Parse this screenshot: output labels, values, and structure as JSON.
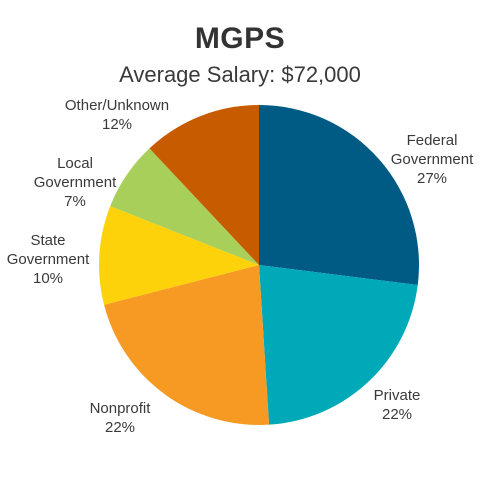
{
  "chart_data": {
    "type": "pie",
    "title": "MGPS",
    "subtitle": "Average Salary: $72,000",
    "slices": [
      {
        "name": "Federal Government",
        "label_lines": [
          "Federal",
          "Government",
          "27%"
        ],
        "value": 27,
        "color": "#005b84"
      },
      {
        "name": "Private",
        "label_lines": [
          "Private",
          "22%"
        ],
        "value": 22,
        "color": "#00a9b8"
      },
      {
        "name": "Nonprofit",
        "label_lines": [
          "Nonprofit",
          "22%"
        ],
        "value": 22,
        "color": "#f79a24"
      },
      {
        "name": "State Government",
        "label_lines": [
          "State",
          "Government",
          "10%"
        ],
        "value": 10,
        "color": "#fdd20a"
      },
      {
        "name": "Local Government",
        "label_lines": [
          "Local",
          "Government",
          "7%"
        ],
        "value": 7,
        "color": "#a8cf5a"
      },
      {
        "name": "Other/Unknown",
        "label_lines": [
          "Other/Unknown",
          "12%"
        ],
        "value": 12,
        "color": "#c75b00"
      }
    ]
  }
}
